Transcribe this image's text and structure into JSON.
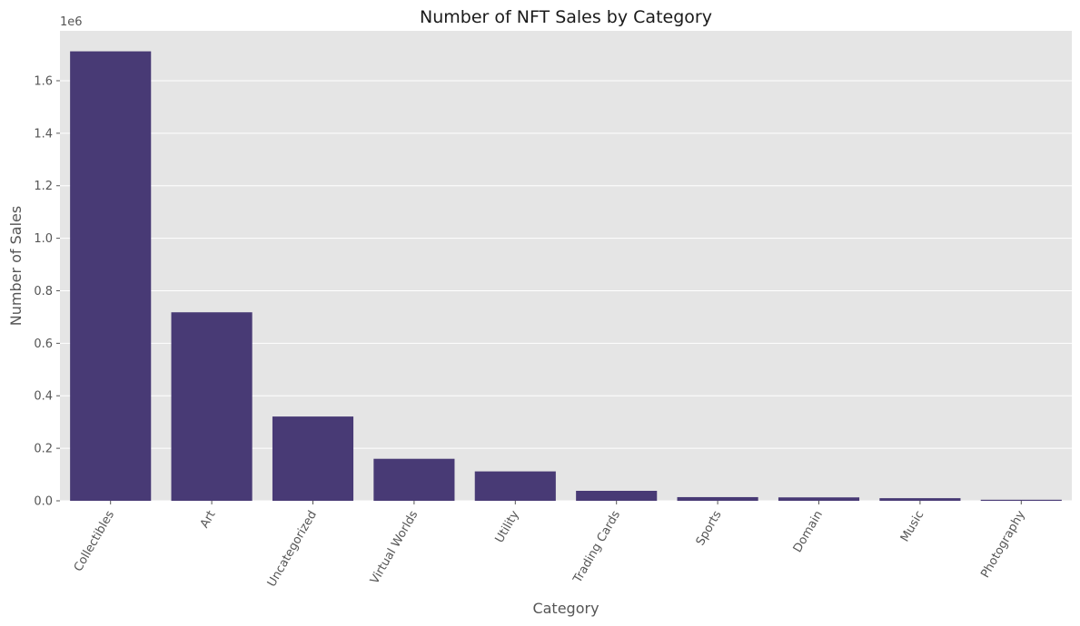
{
  "chart_data": {
    "type": "bar",
    "title": "Number of NFT Sales by Category",
    "xlabel": "Category",
    "ylabel": "Number of Sales",
    "y_offset_label": "1e6",
    "categories": [
      "Collectibles",
      "Art",
      "Uncategorized",
      "Virtual Worlds",
      "Utility",
      "Trading Cards",
      "Sports",
      "Domain",
      "Music",
      "Photography"
    ],
    "values": [
      1712000,
      718000,
      321000,
      160000,
      112000,
      38000,
      14000,
      13000,
      10000,
      4000
    ],
    "ylim": [
      0,
      1.79
    ],
    "yticks": [
      0.0,
      0.2,
      0.4,
      0.6,
      0.8,
      1.0,
      1.2,
      1.4,
      1.6
    ],
    "ytick_labels": [
      "0.0",
      "0.2",
      "0.4",
      "0.6",
      "0.8",
      "1.0",
      "1.2",
      "1.4",
      "1.6"
    ],
    "grid": true,
    "colors": {
      "bar": "#483a75",
      "plot_background": "#e5e5e5",
      "grid": "#ffffff"
    }
  }
}
